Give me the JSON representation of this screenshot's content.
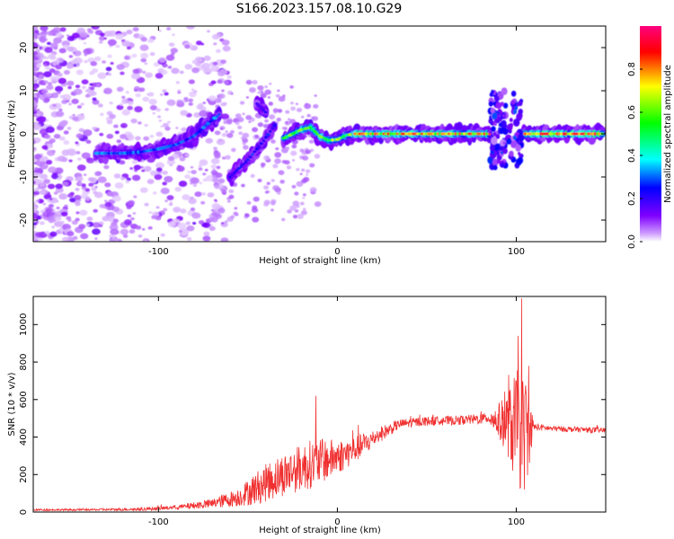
{
  "figure": {
    "title": "S166.2023.157.08.10.G29"
  },
  "chart_data": [
    {
      "type": "heatmap",
      "xlabel": "Height of straight line (km)",
      "ylabel": "Frequency (Hz)",
      "xlim": [
        -170,
        150
      ],
      "ylim": [
        -25,
        25
      ],
      "xticks": [
        -100,
        0,
        100
      ],
      "yticks": [
        -20,
        -10,
        0,
        10,
        20
      ],
      "grid": false,
      "colorbar": {
        "label": "Normalized spectral amplitude",
        "range": [
          0,
          1
        ],
        "ticks": [
          "0.0",
          "0.2",
          "0.4",
          "0.6",
          "0.8"
        ],
        "tick_values": [
          0,
          0.2,
          0.4,
          0.6,
          0.8
        ],
        "placement": "right",
        "colors": [
          "#ffffff",
          "#cc99ff",
          "#8000ff",
          "#0000ff",
          "#00ffff",
          "#00ff00",
          "#ffff00",
          "#ff0000",
          "#ff0080"
        ]
      },
      "ridge_segments": [
        {
          "x": [
            -135,
            -120,
            -110,
            -100,
            -90,
            -80,
            -72,
            -66
          ],
          "y": [
            -4.5,
            -4.5,
            -4.2,
            -3.5,
            -2.5,
            -0.5,
            2.5,
            4.5
          ],
          "amplitude": 0.35
        },
        {
          "x": [
            -60,
            -50,
            -42,
            -35
          ],
          "y": [
            -10,
            -6,
            -2,
            2
          ],
          "amplitude": 0.3
        },
        {
          "x": [
            -45,
            -40
          ],
          "y": [
            7,
            5
          ],
          "amplitude": 0.25
        },
        {
          "x": [
            -30,
            -20,
            -15,
            -10,
            -5,
            0,
            5,
            10
          ],
          "y": [
            -1,
            1,
            1.5,
            -0.5,
            -1.5,
            -1.3,
            -0.3,
            0
          ],
          "amplitude": 0.7
        },
        {
          "x": [
            10,
            30,
            50,
            70,
            85
          ],
          "y": [
            0,
            0,
            0,
            0,
            0
          ],
          "amplitude": 0.88
        },
        {
          "x": [
            104,
            115,
            130,
            148
          ],
          "y": [
            0,
            0,
            0,
            0
          ],
          "amplitude": 0.92
        }
      ]
    },
    {
      "type": "line",
      "xlabel": "Height of straight line (km)",
      "ylabel": "SNR (10 * v/v)",
      "xlim": [
        -170,
        150
      ],
      "ylim": [
        0,
        1150
      ],
      "xticks": [
        -100,
        0,
        100
      ],
      "yticks": [
        0,
        200,
        400,
        600,
        800,
        1000
      ],
      "grid": false,
      "series": [
        {
          "color": "#f03030",
          "envelope_x": [
            -170,
            -140,
            -110,
            -90,
            -70,
            -55,
            -45,
            -35,
            -25,
            -15,
            -5,
            5,
            15,
            25,
            35,
            50,
            70,
            85,
            95,
            100,
            105,
            110,
            120,
            135,
            150
          ],
          "envelope_y": [
            12,
            12,
            15,
            25,
            45,
            80,
            130,
            180,
            220,
            255,
            280,
            310,
            360,
            420,
            470,
            485,
            490,
            500,
            470,
            440,
            420,
            455,
            445,
            440,
            435
          ],
          "noise_amplitude": [
            5,
            5,
            8,
            12,
            25,
            50,
            90,
            110,
            120,
            130,
            110,
            80,
            60,
            40,
            25,
            25,
            25,
            30,
            160,
            320,
            320,
            20,
            15,
            15,
            15
          ],
          "peaks": [
            {
              "x": -12,
              "y": 620
            },
            {
              "x": 103,
              "y": 1140
            },
            {
              "x": 101,
              "y": 940
            },
            {
              "x": 107,
              "y": 780
            }
          ]
        }
      ]
    }
  ]
}
